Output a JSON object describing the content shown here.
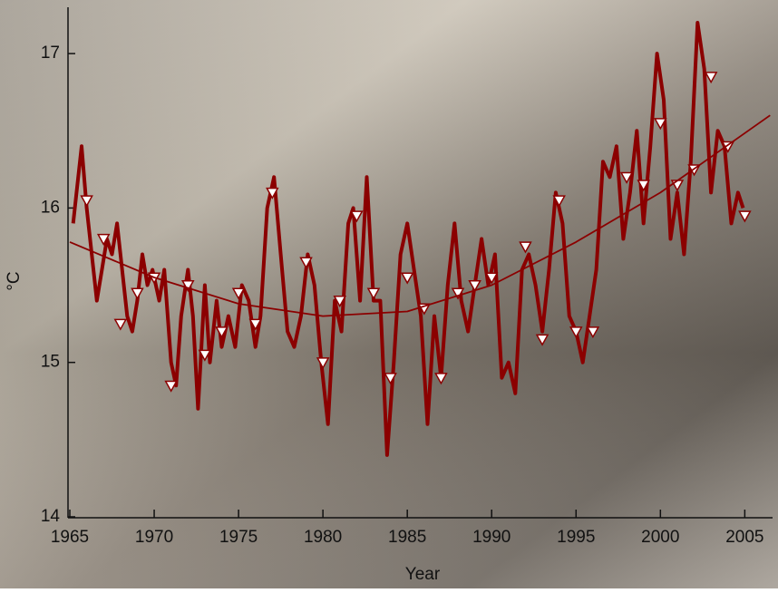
{
  "chart_data": {
    "type": "line",
    "x_label": "Year",
    "y_label": "°C",
    "xlim": [
      1965,
      2006.7
    ],
    "ylim": [
      14,
      17.3
    ],
    "xticks": [
      1965,
      1970,
      1975,
      1980,
      1985,
      1990,
      1995,
      2000,
      2005
    ],
    "yticks": [
      14,
      15,
      16,
      17
    ],
    "series": [
      {
        "color": "#8b0000",
        "style": "line",
        "width": 4,
        "x": [
          1965.2,
          1965.4,
          1965.7,
          1966.0,
          1966.3,
          1966.6,
          1966.9,
          1967.2,
          1967.5,
          1967.8,
          1968.1,
          1968.4,
          1968.7,
          1969.0,
          1969.3,
          1969.6,
          1969.9,
          1970.3,
          1970.6,
          1971.0,
          1971.3,
          1971.6,
          1972.0,
          1972.3,
          1972.6,
          1973.0,
          1973.3,
          1973.7,
          1974.0,
          1974.4,
          1974.8,
          1975.2,
          1975.6,
          1976.0,
          1976.3,
          1976.7,
          1977.1,
          1977.5,
          1977.9,
          1978.3,
          1978.7,
          1979.1,
          1979.5,
          1979.9,
          1980.3,
          1980.7,
          1981.1,
          1981.5,
          1981.8,
          1982.2,
          1982.6,
          1983.0,
          1983.4,
          1983.8,
          1984.2,
          1984.6,
          1985.0,
          1985.4,
          1985.8,
          1986.2,
          1986.6,
          1987.0,
          1987.4,
          1987.8,
          1988.2,
          1988.6,
          1989.0,
          1989.4,
          1989.8,
          1990.2,
          1990.6,
          1991.0,
          1991.4,
          1991.8,
          1992.2,
          1992.6,
          1993.0,
          1993.4,
          1993.8,
          1994.2,
          1994.6,
          1995.0,
          1995.4,
          1995.8,
          1996.2,
          1996.6,
          1997.0,
          1997.4,
          1997.8,
          1998.2,
          1998.6,
          1999.0,
          1999.4,
          1999.8,
          2000.2,
          2000.6,
          2001.0,
          2001.4,
          2001.8,
          2002.2,
          2002.6,
          2003.0,
          2003.4,
          2003.8,
          2004.2,
          2004.6,
          2004.9
        ],
        "values": [
          15.9,
          16.1,
          16.4,
          16.0,
          15.7,
          15.4,
          15.6,
          15.8,
          15.7,
          15.9,
          15.6,
          15.3,
          15.2,
          15.4,
          15.7,
          15.5,
          15.6,
          15.4,
          15.6,
          15.0,
          14.85,
          15.3,
          15.6,
          15.3,
          14.7,
          15.5,
          15.0,
          15.4,
          15.1,
          15.3,
          15.1,
          15.5,
          15.4,
          15.1,
          15.3,
          16.0,
          16.2,
          15.7,
          15.2,
          15.1,
          15.3,
          15.7,
          15.5,
          15.0,
          14.6,
          15.4,
          15.2,
          15.9,
          16.0,
          15.4,
          16.2,
          15.4,
          15.4,
          14.4,
          15.0,
          15.7,
          15.9,
          15.6,
          15.3,
          14.6,
          15.3,
          14.9,
          15.5,
          15.9,
          15.4,
          15.2,
          15.5,
          15.8,
          15.5,
          15.7,
          14.9,
          15.0,
          14.8,
          15.6,
          15.7,
          15.5,
          15.2,
          15.6,
          16.1,
          15.9,
          15.3,
          15.2,
          15.0,
          15.3,
          15.6,
          16.3,
          16.2,
          16.4,
          15.8,
          16.1,
          16.5,
          15.9,
          16.4,
          17.0,
          16.7,
          15.8,
          16.1,
          15.7,
          16.3,
          17.2,
          16.9,
          16.1,
          16.5,
          16.4,
          15.9,
          16.1,
          16.0
        ]
      },
      {
        "color": "#8b0000",
        "style": "markers",
        "marker_fill": "#ffffff",
        "x": [
          1966,
          1967,
          1968,
          1969,
          1970,
          1971,
          1972,
          1973,
          1974,
          1975,
          1976,
          1977,
          1979,
          1980,
          1981,
          1982,
          1983,
          1984,
          1985,
          1986,
          1987,
          1988,
          1989,
          1990,
          1992,
          1993,
          1994,
          1995,
          1996,
          1998,
          1999,
          2000,
          2001,
          2002,
          2003,
          2004,
          2005
        ],
        "values": [
          16.05,
          15.8,
          15.25,
          15.45,
          15.55,
          14.85,
          15.5,
          15.05,
          15.2,
          15.45,
          15.25,
          16.1,
          15.65,
          15.0,
          15.4,
          15.95,
          15.45,
          14.9,
          15.55,
          15.35,
          14.9,
          15.45,
          15.5,
          15.55,
          15.75,
          15.15,
          16.05,
          15.2,
          15.2,
          16.2,
          16.15,
          16.55,
          16.15,
          16.25,
          16.85,
          16.4,
          15.95
        ]
      },
      {
        "color": "#8b0000",
        "style": "line",
        "width": 1.8,
        "x": [
          1965,
          1970,
          1975,
          1980,
          1985,
          1990,
          1995,
          2000,
          2006.5
        ],
        "values": [
          15.78,
          15.55,
          15.38,
          15.3,
          15.33,
          15.5,
          15.78,
          16.1,
          16.6
        ]
      }
    ]
  }
}
